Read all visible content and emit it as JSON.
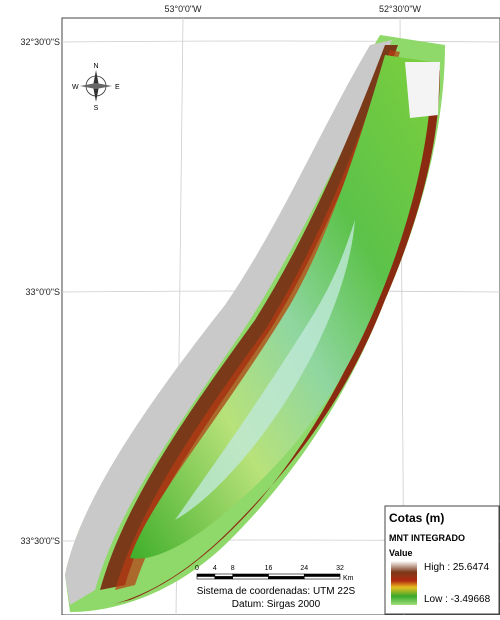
{
  "map": {
    "top_labels": [
      "53°0'0\"W",
      "52°30'0\"W"
    ],
    "left_labels": [
      "32°30'0\"S",
      "33°0'0\"S",
      "33°30'0\"S"
    ],
    "compass": {
      "north": "N",
      "south": "S",
      "east": "E",
      "west": "W"
    },
    "legend": {
      "title": "Cotas (m)",
      "layer": "MNT INTEGRADO",
      "field": "Value",
      "high": "High : 25.6474",
      "low": "Low : -3.49668"
    },
    "scale_bar": {
      "ticks": [
        0,
        4,
        8,
        16,
        24,
        32
      ],
      "unit": "Km"
    },
    "coordinate_system": "Sistema de coordenadas: UTM 22S",
    "datum": "Datum: Sirgas 2000"
  }
}
